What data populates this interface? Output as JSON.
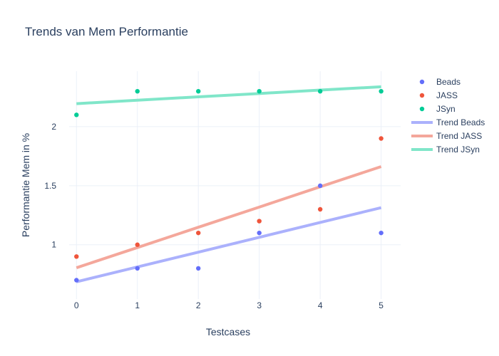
{
  "chart_data": {
    "type": "scatter",
    "title": "Trends van Mem Performantie",
    "xlabel": "Testcases",
    "ylabel": "Performantie Mem in %",
    "x": [
      0,
      1,
      2,
      3,
      4,
      5
    ],
    "xticks": [
      0,
      1,
      2,
      3,
      4,
      5
    ],
    "yticks": [
      1,
      1.5,
      2
    ],
    "xlim": [
      -0.12,
      5.32
    ],
    "ylim": [
      0.54,
      2.47
    ],
    "grid": true,
    "legend": "right",
    "series": [
      {
        "name": "Beads",
        "mode": "markers",
        "color": "#636efa",
        "values": [
          0.7,
          0.8,
          0.8,
          1.1,
          1.5,
          1.1
        ]
      },
      {
        "name": "JASS",
        "mode": "markers",
        "color": "#ef553b",
        "values": [
          0.9,
          1.0,
          1.1,
          1.2,
          1.3,
          1.9
        ]
      },
      {
        "name": "JSyn",
        "mode": "markers",
        "color": "#00cc96",
        "values": [
          2.1,
          2.3,
          2.3,
          2.3,
          2.3,
          2.3
        ]
      },
      {
        "name": "Trend Beads",
        "mode": "line",
        "color": "#abb1fc",
        "values": [
          0.686,
          0.812,
          0.937,
          1.063,
          1.189,
          1.314
        ]
      },
      {
        "name": "Trend JASS",
        "mode": "line",
        "color": "#f4a79b",
        "values": [
          0.805,
          0.976,
          1.148,
          1.319,
          1.491,
          1.662
        ]
      },
      {
        "name": "Trend JSyn",
        "mode": "line",
        "color": "#80e6c9",
        "values": [
          2.195,
          2.224,
          2.253,
          2.281,
          2.31,
          2.338
        ]
      }
    ]
  }
}
